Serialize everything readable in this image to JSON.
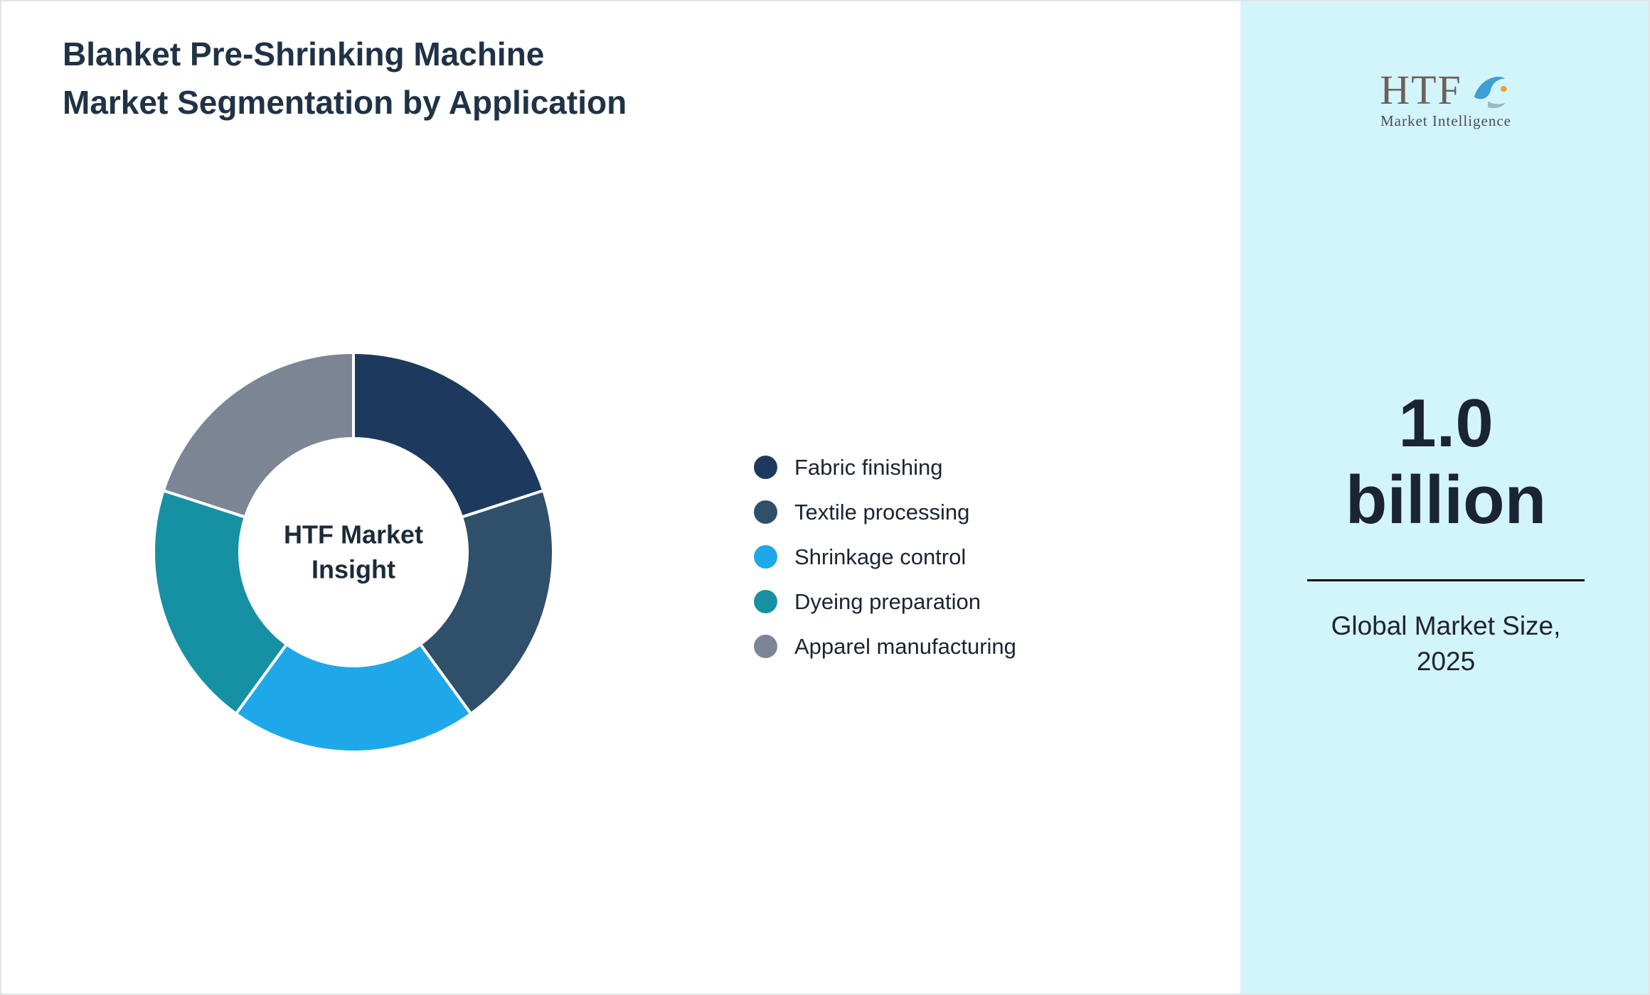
{
  "title": "Blanket Pre-Shrinking Machine Market Segmentation by Application",
  "chart_data": {
    "type": "pie",
    "subtype": "donut",
    "center_label": "HTF Market Insight",
    "legend_position": "right",
    "start_angle_deg": 0,
    "units": "percent",
    "segments": [
      {
        "label": "Fabric finishing",
        "value": 20,
        "color": "#1d3a5e"
      },
      {
        "label": "Textile processing",
        "value": 20,
        "color": "#2f4f6b"
      },
      {
        "label": "Shrinkage control",
        "value": 20,
        "color": "#1fa8e9"
      },
      {
        "label": "Dyeing preparation",
        "value": 20,
        "color": "#1691a3"
      },
      {
        "label": "Apparel manufacturing",
        "value": 20,
        "color": "#7c8594"
      }
    ]
  },
  "side_panel": {
    "background": "#d2f4fb",
    "logo": {
      "text": "HTF",
      "subtext": "Market Intelligence"
    },
    "market_size_value": "1.0 billion",
    "market_size_label": "Global Market Size, 2025"
  }
}
